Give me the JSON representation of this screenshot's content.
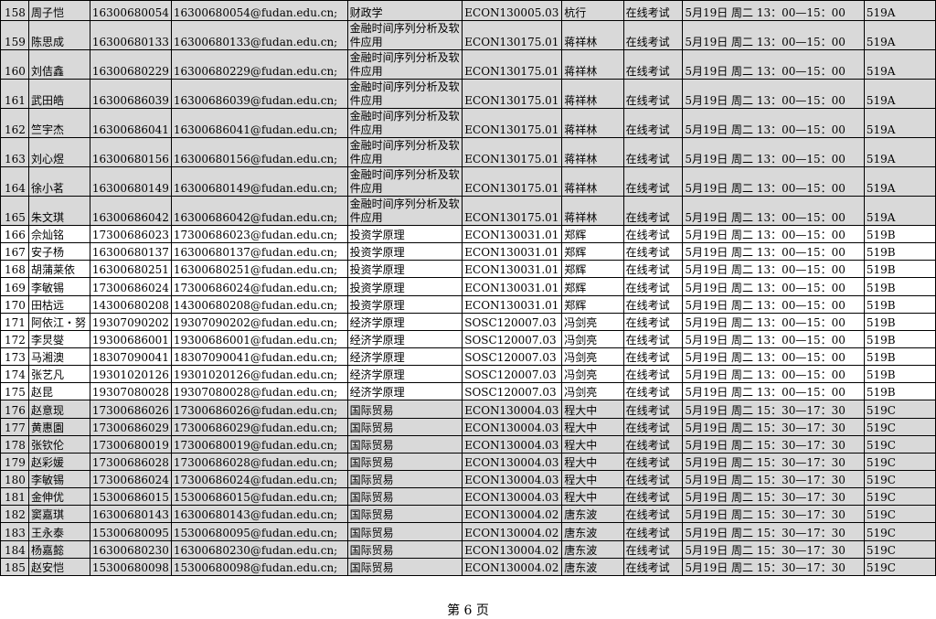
{
  "table": {
    "rows": [
      [
        "158",
        "周子恺",
        "16300680054",
        "16300680054@fudan.edu.cn;",
        "财政学",
        "ECON130005.03",
        "杭行",
        "在线考试",
        "5月19日 周二 13：00—15：00",
        "519A"
      ],
      [
        "159",
        "陈思成",
        "16300680133",
        "16300680133@fudan.edu.cn;",
        "金融时间序列分析及软件应用",
        "ECON130175.01",
        "蒋祥林",
        "在线考试",
        "5月19日 周二 13：00—15：00",
        "519A"
      ],
      [
        "160",
        "刘佶鑫",
        "16300680229",
        "16300680229@fudan.edu.cn;",
        "金融时间序列分析及软件应用",
        "ECON130175.01",
        "蒋祥林",
        "在线考试",
        "5月19日 周二 13：00—15：00",
        "519A"
      ],
      [
        "161",
        "武田皓",
        "16300686039",
        "16300686039@fudan.edu.cn;",
        "金融时间序列分析及软件应用",
        "ECON130175.01",
        "蒋祥林",
        "在线考试",
        "5月19日 周二 13：00—15：00",
        "519A"
      ],
      [
        "162",
        "竺宇杰",
        "16300686041",
        "16300686041@fudan.edu.cn;",
        "金融时间序列分析及软件应用",
        "ECON130175.01",
        "蒋祥林",
        "在线考试",
        "5月19日 周二 13：00—15：00",
        "519A"
      ],
      [
        "163",
        "刘心煜",
        "16300680156",
        "16300680156@fudan.edu.cn;",
        "金融时间序列分析及软件应用",
        "ECON130175.01",
        "蒋祥林",
        "在线考试",
        "5月19日 周二 13：00—15：00",
        "519A"
      ],
      [
        "164",
        "徐小茗",
        "16300680149",
        "16300680149@fudan.edu.cn;",
        "金融时间序列分析及软件应用",
        "ECON130175.01",
        "蒋祥林",
        "在线考试",
        "5月19日 周二 13：00—15：00",
        "519A"
      ],
      [
        "165",
        "朱文琪",
        "16300686042",
        "16300686042@fudan.edu.cn;",
        "金融时间序列分析及软件应用",
        "ECON130175.01",
        "蒋祥林",
        "在线考试",
        "5月19日 周二 13：00—15：00",
        "519A"
      ],
      [
        "166",
        "佘灿铭",
        "17300686023",
        "17300686023@fudan.edu.cn;",
        "投资学原理",
        "ECON130031.01",
        "郑辉",
        "在线考试",
        "5月19日 周二 13：00—15：00",
        "519B"
      ],
      [
        "167",
        "安子杨",
        "16300680137",
        "16300680137@fudan.edu.cn;",
        "投资学原理",
        "ECON130031.01",
        "郑辉",
        "在线考试",
        "5月19日 周二 13：00—15：00",
        "519B"
      ],
      [
        "168",
        "胡蒲莱依",
        "16300680251",
        "16300680251@fudan.edu.cn;",
        "投资学原理",
        "ECON130031.01",
        "郑辉",
        "在线考试",
        "5月19日 周二 13：00—15：00",
        "519B"
      ],
      [
        "169",
        "李敏锡",
        "17300686024",
        "17300686024@fudan.edu.cn;",
        "投资学原理",
        "ECON130031.01",
        "郑辉",
        "在线考试",
        "5月19日 周二 13：00—15：00",
        "519B"
      ],
      [
        "170",
        "田枯远",
        "14300680208",
        "14300680208@fudan.edu.cn;",
        "投资学原理",
        "ECON130031.01",
        "郑辉",
        "在线考试",
        "5月19日 周二 13：00—15：00",
        "519B"
      ],
      [
        "171",
        "阿依江・努",
        "19307090202",
        "19307090202@fudan.edu.cn;",
        "经济学原理",
        "SOSC120007.03",
        "冯剑亮",
        "在线考试",
        "5月19日 周二 13：00—15：00",
        "519B"
      ],
      [
        "172",
        "李炅燮",
        "19300686001",
        "19300686001@fudan.edu.cn;",
        "经济学原理",
        "SOSC120007.03",
        "冯剑亮",
        "在线考试",
        "5月19日 周二 13：00—15：00",
        "519B"
      ],
      [
        "173",
        "马湘澳",
        "18307090041",
        "18307090041@fudan.edu.cn;",
        "经济学原理",
        "SOSC120007.03",
        "冯剑亮",
        "在线考试",
        "5月19日 周二 13：00—15：00",
        "519B"
      ],
      [
        "174",
        "张艺凡",
        "19301020126",
        "19301020126@fudan.edu.cn;",
        "经济学原理",
        "SOSC120007.03",
        "冯剑亮",
        "在线考试",
        "5月19日 周二 13：00—15：00",
        "519B"
      ],
      [
        "175",
        "赵昆",
        "19307080028",
        "19307080028@fudan.edu.cn;",
        "经济学原理",
        "SOSC120007.03",
        "冯剑亮",
        "在线考试",
        "5月19日 周二 13：00—15：00",
        "519B"
      ],
      [
        "176",
        "赵意现",
        "17300686026",
        "17300686026@fudan.edu.cn;",
        "国际贸易",
        "ECON130004.03",
        "程大中",
        "在线考试",
        "5月19日 周二 15：30—17：30",
        "519C"
      ],
      [
        "177",
        "黄惠園",
        "17300686029",
        "17300686029@fudan.edu.cn;",
        "国际贸易",
        "ECON130004.03",
        "程大中",
        "在线考试",
        "5月19日 周二 15：30—17：30",
        "519C"
      ],
      [
        "178",
        "张钦伦",
        "17300680019",
        "17300680019@fudan.edu.cn;",
        "国际贸易",
        "ECON130004.03",
        "程大中",
        "在线考试",
        "5月19日 周二 15：30—17：30",
        "519C"
      ],
      [
        "179",
        "赵彩媛",
        "17300686028",
        "17300686028@fudan.edu.cn;",
        "国际贸易",
        "ECON130004.03",
        "程大中",
        "在线考试",
        "5月19日 周二 15：30—17：30",
        "519C"
      ],
      [
        "180",
        "李敏锡",
        "17300686024",
        "17300686024@fudan.edu.cn;",
        "国际贸易",
        "ECON130004.03",
        "程大中",
        "在线考试",
        "5月19日 周二 15：30—17：30",
        "519C"
      ],
      [
        "181",
        "金伸优",
        "15300686015",
        "15300686015@fudan.edu.cn;",
        "国际贸易",
        "ECON130004.03",
        "程大中",
        "在线考试",
        "5月19日 周二 15：30—17：30",
        "519C"
      ],
      [
        "182",
        "窦嘉琪",
        "16300680143",
        "16300680143@fudan.edu.cn;",
        "国际贸易",
        "ECON130004.02",
        "唐东波",
        "在线考试",
        "5月19日 周二 15：30—17：30",
        "519C"
      ],
      [
        "183",
        "王永泰",
        "15300680095",
        "15300680095@fudan.edu.cn;",
        "国际贸易",
        "ECON130004.02",
        "唐东波",
        "在线考试",
        "5月19日 周二 15：30—17：30",
        "519C"
      ],
      [
        "184",
        "杨嘉懿",
        "16300680230",
        "16300680230@fudan.edu.cn;",
        "国际贸易",
        "ECON130004.02",
        "唐东波",
        "在线考试",
        "5月19日 周二 15：30—17：30",
        "519C"
      ],
      [
        "185",
        "赵安恺",
        "15300680098",
        "15300680098@fudan.edu.cn;",
        "国际贸易",
        "ECON130004.02",
        "唐东波",
        "在线考试",
        "5月19日 周二 15：30—17：30",
        "519C"
      ]
    ]
  },
  "footer": "第 6 页"
}
